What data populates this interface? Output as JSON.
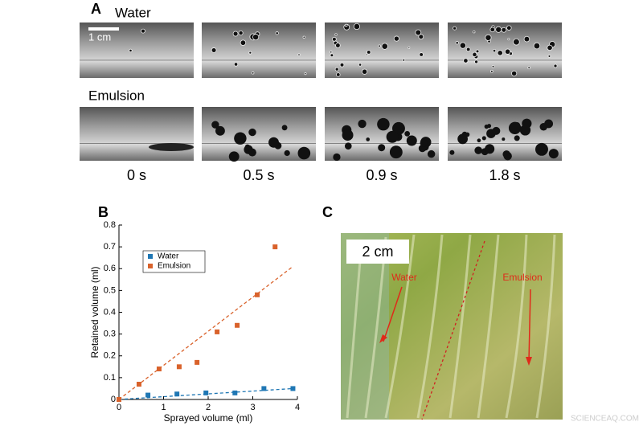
{
  "panel_a": {
    "label": "A",
    "row_labels": [
      "Water",
      "Emulsion"
    ],
    "scale_bar": "1 cm",
    "times": [
      "0 s",
      "0.5 s",
      "0.9 s",
      "1.8 s"
    ]
  },
  "chart_data": {
    "type": "scatter",
    "panel_label": "B",
    "x_label": "Sprayed volume (ml)",
    "y_label": "Retained volume (ml)",
    "xlim": [
      0,
      4
    ],
    "xticks": [
      0,
      1,
      2,
      3,
      4
    ],
    "ylim": [
      0,
      0.8
    ],
    "yticks": [
      0,
      0.1,
      0.2,
      0.3,
      0.4,
      0.5,
      0.6,
      0.7,
      0.8
    ],
    "legend": "upper left",
    "series": [
      {
        "name": "Water",
        "color": "#1f77b4",
        "x": [
          0,
          0.65,
          1.3,
          1.95,
          2.6,
          3.25,
          3.9
        ],
        "values": [
          0,
          0.02,
          0.025,
          0.03,
          0.03,
          0.05,
          0.05
        ],
        "fit": {
          "x": [
            0,
            3.9
          ],
          "values": [
            0,
            0.05
          ]
        }
      },
      {
        "name": "Emulsion",
        "color": "#d9622b",
        "x": [
          0,
          0.45,
          0.9,
          1.35,
          1.75,
          2.2,
          2.65,
          3.1,
          3.5
        ],
        "values": [
          0,
          0.07,
          0.14,
          0.15,
          0.17,
          0.31,
          0.34,
          0.48,
          0.7
        ],
        "fit": {
          "x": [
            0,
            3.9
          ],
          "values": [
            0,
            0.61
          ]
        }
      }
    ]
  },
  "panel_c": {
    "label": "C",
    "scale_bar": "2 cm",
    "water": "Water",
    "emulsion": "Emulsion"
  },
  "watermark": "SCIENCEAQ.COM"
}
